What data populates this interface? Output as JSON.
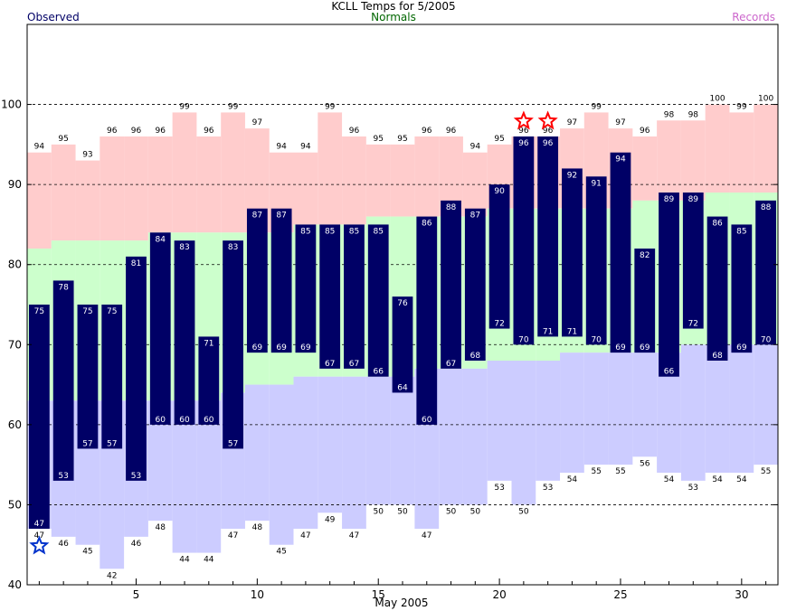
{
  "header": {
    "title": "KCLL Temps for 5/2005",
    "observed_label": "Observed",
    "normals_label": "Normals",
    "records_label": "Records",
    "xlabel": "May 2005"
  },
  "colors": {
    "observed_bar": "#000066",
    "normal_band": "#ccffcc",
    "record_high_band": "#ffcccc",
    "record_low_band": "#ccccff",
    "observed_text": "#000066",
    "normals_text": "#006600",
    "records_text": "#cc66cc",
    "record_high_star": "#ff0000",
    "record_low_star": "#0033cc"
  },
  "chart_data": {
    "type": "bar",
    "title": "KCLL Temps for 5/2005",
    "xlabel": "May 2005",
    "ylabel": "",
    "ylim": [
      40,
      110
    ],
    "xlim": [
      0.5,
      31.5
    ],
    "yticks": [
      40,
      50,
      60,
      70,
      80,
      90,
      100
    ],
    "xticks": [
      5,
      10,
      15,
      20,
      25,
      30
    ],
    "grid": "dashed horizontal at 50, 60, 70, 80, 90, 100",
    "days": [
      1,
      2,
      3,
      4,
      5,
      6,
      7,
      8,
      9,
      10,
      11,
      12,
      13,
      14,
      15,
      16,
      17,
      18,
      19,
      20,
      21,
      22,
      23,
      24,
      25,
      26,
      27,
      28,
      29,
      30,
      31
    ],
    "series": [
      {
        "name": "Observed",
        "high": [
          75,
          78,
          75,
          75,
          81,
          84,
          83,
          71,
          83,
          87,
          87,
          85,
          85,
          85,
          85,
          76,
          86,
          88,
          87,
          90,
          96,
          96,
          92,
          91,
          94,
          82,
          89,
          89,
          86,
          85,
          88
        ],
        "low": [
          47,
          53,
          57,
          57,
          53,
          60,
          60,
          60,
          57,
          69,
          69,
          69,
          67,
          67,
          66,
          64,
          60,
          67,
          68,
          72,
          70,
          71,
          71,
          70,
          69,
          69,
          66,
          72,
          68,
          69,
          70
        ]
      },
      {
        "name": "Normals",
        "high": [
          82,
          83,
          83,
          83,
          83,
          84,
          84,
          84,
          84,
          84,
          84,
          85,
          85,
          85,
          86,
          86,
          86,
          86,
          86,
          87,
          87,
          87,
          87,
          87,
          87,
          88,
          88,
          88,
          89,
          89,
          89
        ],
        "low": [
          63,
          63,
          63,
          63,
          63,
          63,
          63,
          63,
          64,
          65,
          65,
          66,
          66,
          66,
          66,
          66,
          67,
          67,
          67,
          68,
          68,
          68,
          69,
          69,
          69,
          69,
          69,
          70,
          70,
          70,
          70
        ]
      },
      {
        "name": "Records",
        "high": [
          94,
          95,
          93,
          96,
          96,
          96,
          99,
          96,
          99,
          97,
          94,
          94,
          99,
          96,
          95,
          95,
          96,
          96,
          94,
          95,
          96,
          96,
          97,
          99,
          97,
          96,
          98,
          98,
          100,
          99,
          100
        ],
        "low": [
          47,
          46,
          45,
          42,
          46,
          48,
          44,
          44,
          47,
          48,
          45,
          47,
          49,
          47,
          50,
          50,
          47,
          50,
          50,
          53,
          50,
          53,
          54,
          55,
          55,
          56,
          54,
          53,
          54,
          54,
          55
        ]
      }
    ],
    "record_high_set_days": [
      21,
      22
    ],
    "record_low_set_days": [
      1
    ]
  }
}
